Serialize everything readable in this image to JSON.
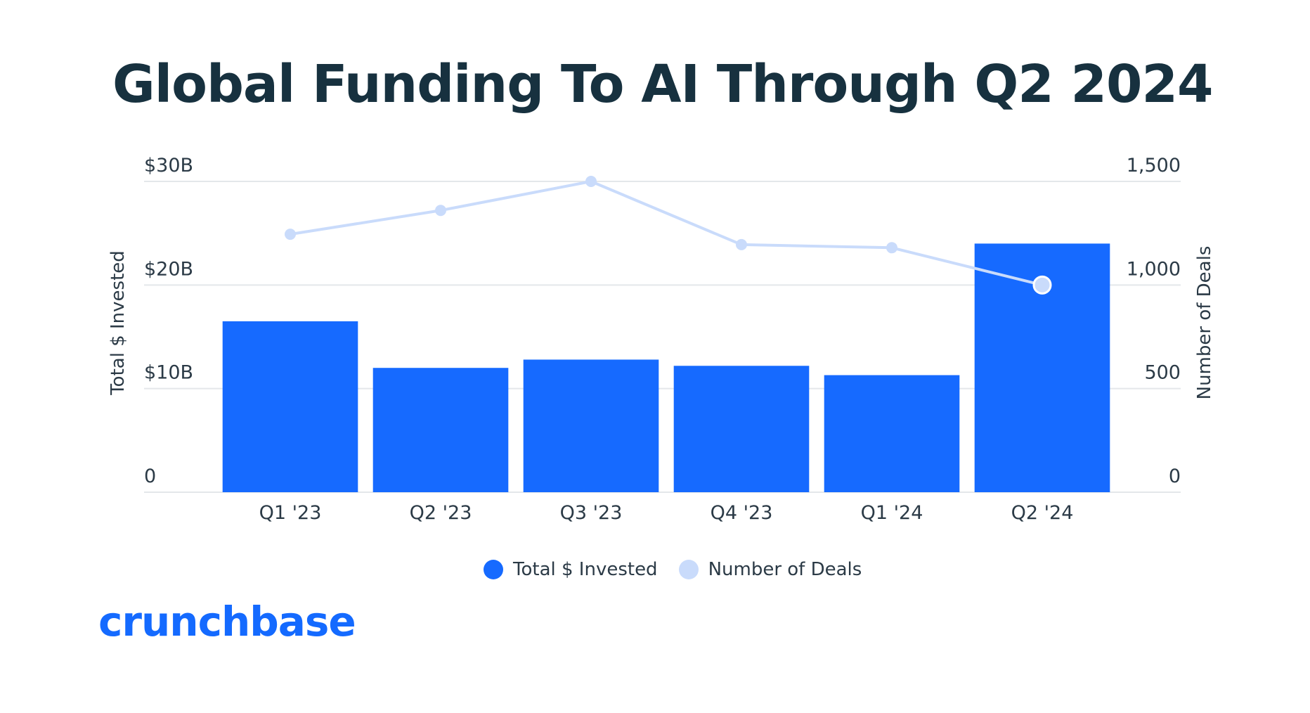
{
  "title": "Global Funding To AI Through Q2 2024",
  "logo": "crunchbase",
  "colors": {
    "bar": "#166aff",
    "line": "#c9dbfb",
    "title": "#17313f",
    "text": "#2b3a46",
    "grid": "#e4e7ea"
  },
  "chart_data": {
    "type": "bar",
    "categories": [
      "Q1 '23",
      "Q2 '23",
      "Q3 '23",
      "Q4 '23",
      "Q1 '24",
      "Q2 '24"
    ],
    "series": [
      {
        "name": "Total $ Invested",
        "type": "bar",
        "axis": "left",
        "values": [
          16.5,
          12.0,
          12.8,
          12.2,
          11.3,
          24.0
        ]
      },
      {
        "name": "Number of Deals",
        "type": "line",
        "axis": "right",
        "values": [
          1245,
          1360,
          1500,
          1195,
          1180,
          1000
        ]
      }
    ],
    "ylabel": "Total $ Invested",
    "y2label": "Number of Deals",
    "ylim": [
      0,
      30
    ],
    "y2lim": [
      0,
      1500
    ],
    "yticks": [
      "0",
      "$10B",
      "$20B",
      "$30B"
    ],
    "y2ticks": [
      "0",
      "500",
      "1,000",
      "1,500"
    ],
    "grid": true,
    "legend_position": "bottom"
  }
}
